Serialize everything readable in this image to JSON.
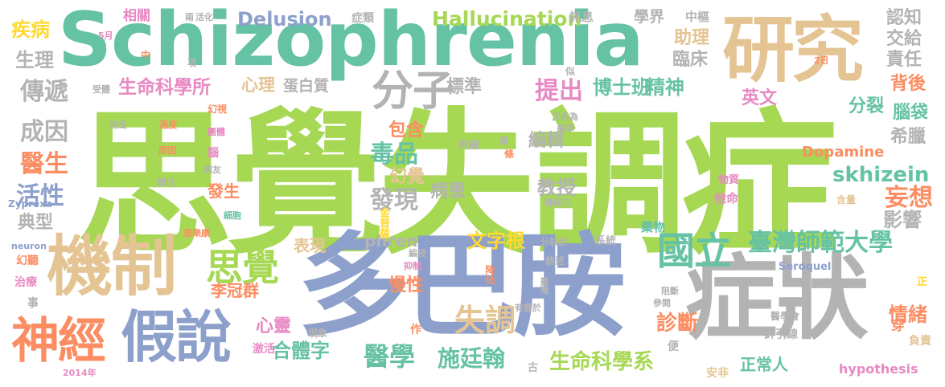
{
  "colors": {
    "green": "#a6d854",
    "teal": "#66c2a5",
    "blue": "#8da0cb",
    "tan": "#e5c494",
    "gray": "#b3b3b3",
    "orange": "#fc8d62",
    "pink": "#e78ac3",
    "yellow": "#ffd92f"
  },
  "words": [
    {
      "text": "思覺失調症",
      "color": "green"
    },
    {
      "text": "Schizophrenia",
      "color": "teal"
    },
    {
      "text": "多巴胺",
      "color": "blue"
    },
    {
      "text": "症狀",
      "color": "gray"
    },
    {
      "text": "機制",
      "color": "tan"
    },
    {
      "text": "研究",
      "color": "tan"
    },
    {
      "text": "假說",
      "color": "blue"
    },
    {
      "text": "神經",
      "color": "orange"
    },
    {
      "text": "分子",
      "color": "gray"
    },
    {
      "text": "思覺",
      "color": "green"
    },
    {
      "text": "國立",
      "color": "teal"
    },
    {
      "text": "臺灣師範大學",
      "color": "teal"
    },
    {
      "text": "失調",
      "color": "tan"
    },
    {
      "text": "醫學",
      "color": "teal"
    },
    {
      "text": "施廷翰",
      "color": "teal"
    },
    {
      "text": "生命科學系",
      "color": "green"
    },
    {
      "text": "生命科學所",
      "color": "pink"
    },
    {
      "text": "Hallucination",
      "color": "green"
    },
    {
      "text": "Delusion",
      "color": "blue"
    },
    {
      "text": "訊息",
      "color": "gray"
    },
    {
      "text": "學界",
      "color": "gray"
    },
    {
      "text": "中樞",
      "color": "gray"
    },
    {
      "text": "認知",
      "color": "gray"
    },
    {
      "text": "交給",
      "color": "gray"
    },
    {
      "text": "責任",
      "color": "gray"
    },
    {
      "text": "助理",
      "color": "tan"
    },
    {
      "text": "臨床",
      "color": "gray"
    },
    {
      "text": "傳遞",
      "color": "gray"
    },
    {
      "text": "成因",
      "color": "gray"
    },
    {
      "text": "醫生",
      "color": "orange"
    },
    {
      "text": "活性",
      "color": "blue"
    },
    {
      "text": "典型",
      "color": "gray"
    },
    {
      "text": "疾病",
      "color": "yellow"
    },
    {
      "text": "生理",
      "color": "gray"
    },
    {
      "text": "相關",
      "color": "pink"
    },
    {
      "text": "症類",
      "color": "gray"
    },
    {
      "text": "心理",
      "color": "tan"
    },
    {
      "text": "蛋白質",
      "color": "gray"
    },
    {
      "text": "標準",
      "color": "gray"
    },
    {
      "text": "博士班",
      "color": "teal"
    },
    {
      "text": "精神",
      "color": "teal"
    },
    {
      "text": "提出",
      "color": "pink"
    },
    {
      "text": "英文",
      "color": "pink"
    },
    {
      "text": "背後",
      "color": "orange"
    },
    {
      "text": "分裂",
      "color": "teal"
    },
    {
      "text": "腦袋",
      "color": "teal"
    },
    {
      "text": "希臘",
      "color": "gray"
    },
    {
      "text": "毒品",
      "color": "teal"
    },
    {
      "text": "包含",
      "color": "orange"
    },
    {
      "text": "編輯",
      "color": "gray"
    },
    {
      "text": "幻覺",
      "color": "tan"
    },
    {
      "text": "發現",
      "color": "gray"
    },
    {
      "text": "教授",
      "color": "gray"
    },
    {
      "text": "病患",
      "color": "gray"
    },
    {
      "text": "skhizein",
      "color": "teal"
    },
    {
      "text": "妄想",
      "color": "orange"
    },
    {
      "text": "影響",
      "color": "gray"
    },
    {
      "text": "Dopamine",
      "color": "orange"
    },
    {
      "text": "phren",
      "color": "gray"
    },
    {
      "text": "文字根",
      "color": "yellow"
    },
    {
      "text": "表現",
      "color": "tan"
    },
    {
      "text": "李冠群",
      "color": "orange"
    },
    {
      "text": "慢性",
      "color": "orange"
    },
    {
      "text": "心靈",
      "color": "pink"
    },
    {
      "text": "合體字",
      "color": "teal"
    },
    {
      "text": "診斷",
      "color": "orange"
    },
    {
      "text": "情緒",
      "color": "orange"
    },
    {
      "text": "正常人",
      "color": "teal"
    },
    {
      "text": "hypothesis",
      "color": "pink"
    },
    {
      "text": "Seroquel",
      "color": "blue"
    },
    {
      "text": "針引線",
      "color": "gray"
    },
    {
      "text": "負責",
      "color": "tan"
    },
    {
      "text": "穿",
      "color": "orange"
    },
    {
      "text": "正",
      "color": "yellow"
    },
    {
      "text": "醫學會",
      "color": "gray"
    },
    {
      "text": "他命",
      "color": "pink"
    },
    {
      "text": "含量",
      "color": "tan"
    },
    {
      "text": "物質",
      "color": "pink"
    },
    {
      "text": "藥物",
      "color": "teal"
    },
    {
      "text": "系統",
      "color": "gray"
    },
    {
      "text": "分裂症",
      "color": "gray"
    },
    {
      "text": "金普薩",
      "color": "yellow"
    },
    {
      "text": "敘述",
      "color": "gray"
    },
    {
      "text": "臺灣",
      "color": "gray"
    },
    {
      "text": "降低",
      "color": "orange"
    },
    {
      "text": "抑制",
      "color": "pink"
    },
    {
      "text": "編按",
      "color": "gray"
    },
    {
      "text": "有鑒於",
      "color": "gray"
    },
    {
      "text": "阻斷",
      "color": "gray"
    },
    {
      "text": "參閱",
      "color": "gray"
    },
    {
      "text": "安非",
      "color": "tan"
    },
    {
      "text": "古",
      "color": "gray"
    },
    {
      "text": "便",
      "color": "gray"
    },
    {
      "text": "作",
      "color": "orange"
    },
    {
      "text": "現象",
      "color": "gray"
    },
    {
      "text": "激活",
      "color": "pink"
    },
    {
      "text": "2014年",
      "color": "pink"
    },
    {
      "text": "事",
      "color": "gray"
    },
    {
      "text": "治療",
      "color": "pink"
    },
    {
      "text": "幻聽",
      "color": "orange"
    },
    {
      "text": "neuron",
      "color": "blue"
    },
    {
      "text": "思樂康",
      "color": "orange"
    },
    {
      "text": "細胞",
      "color": "teal"
    },
    {
      "text": "Zyprexa",
      "color": "blue"
    },
    {
      "text": "即日",
      "color": "gray"
    },
    {
      "text": "病友",
      "color": "gray"
    },
    {
      "text": "發生",
      "color": "orange"
    },
    {
      "text": "腦",
      "color": "pink"
    },
    {
      "text": "團體",
      "color": "pink"
    },
    {
      "text": "原因",
      "color": "orange"
    },
    {
      "text": "過度",
      "color": "orange"
    },
    {
      "text": "指出",
      "color": "gray"
    },
    {
      "text": "幻視",
      "color": "orange"
    },
    {
      "text": "受體",
      "color": "gray"
    },
    {
      "text": "5月",
      "color": "pink"
    },
    {
      "text": "中",
      "color": "orange"
    },
    {
      "text": "兩",
      "color": "gray"
    },
    {
      "text": "活化",
      "color": "gray"
    },
    {
      "text": "項",
      "color": "gray"
    },
    {
      "text": "似",
      "color": "gray"
    },
    {
      "text": "正名為",
      "color": "gray"
    },
    {
      "text": "最早",
      "color": "gray"
    },
    {
      "text": "請",
      "color": "gray"
    },
    {
      "text": "柯鹼",
      "color": "gray"
    },
    {
      "text": "條",
      "color": "orange"
    },
    {
      "text": "神經元",
      "color": "gray"
    },
    {
      "text": "2日",
      "color": "orange"
    }
  ]
}
